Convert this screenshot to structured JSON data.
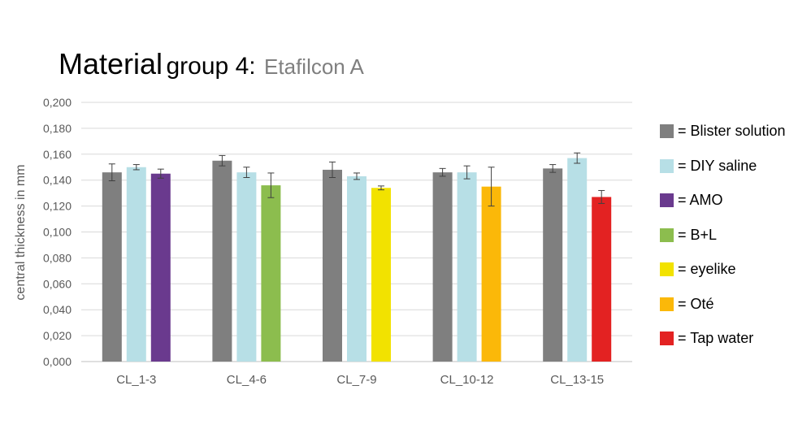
{
  "title": {
    "part1": "Material",
    "part2": "group 4:",
    "subtitle": "Etafilcon A"
  },
  "chart_data": {
    "type": "bar",
    "ylabel": "central thickness in mm",
    "xlabel": "",
    "ylim": [
      0,
      0.2
    ],
    "yticks": [
      "0,000",
      "0,020",
      "0,040",
      "0,060",
      "0,080",
      "0,100",
      "0,120",
      "0,140",
      "0,160",
      "0,180",
      "0,200"
    ],
    "grid": true,
    "legend_position": "right",
    "groups": [
      {
        "label": "CL_1-3",
        "bars": [
          {
            "series": "= Blister solution",
            "value": 0.146,
            "err": 0.0065,
            "color": "#7f7f7f"
          },
          {
            "series": "= DIY saline",
            "value": 0.15,
            "err": 0.002,
            "color": "#b7dfe6"
          },
          {
            "series": "= AMO",
            "value": 0.145,
            "err": 0.0035,
            "color": "#6a3a8e"
          }
        ]
      },
      {
        "label": "CL_4-6",
        "bars": [
          {
            "series": "= Blister solution",
            "value": 0.155,
            "err": 0.004,
            "color": "#7f7f7f"
          },
          {
            "series": "= DIY saline",
            "value": 0.146,
            "err": 0.004,
            "color": "#b7dfe6"
          },
          {
            "series": "= B+L",
            "value": 0.136,
            "err": 0.0095,
            "color": "#8cbd4e"
          }
        ]
      },
      {
        "label": "CL_7-9",
        "bars": [
          {
            "series": "= Blister solution",
            "value": 0.148,
            "err": 0.006,
            "color": "#7f7f7f"
          },
          {
            "series": "= DIY saline",
            "value": 0.143,
            "err": 0.0025,
            "color": "#b7dfe6"
          },
          {
            "series": "= eyelike",
            "value": 0.134,
            "err": 0.0015,
            "color": "#f2e200"
          }
        ]
      },
      {
        "label": "CL_10-12",
        "bars": [
          {
            "series": "= Blister solution",
            "value": 0.146,
            "err": 0.003,
            "color": "#7f7f7f"
          },
          {
            "series": "= DIY saline",
            "value": 0.146,
            "err": 0.005,
            "color": "#b7dfe6"
          },
          {
            "series": "= Oté",
            "value": 0.135,
            "err": 0.015,
            "color": "#fbb809"
          }
        ]
      },
      {
        "label": "CL_13-15",
        "bars": [
          {
            "series": "= Blister solution",
            "value": 0.149,
            "err": 0.003,
            "color": "#7f7f7f"
          },
          {
            "series": "= DIY saline",
            "value": 0.157,
            "err": 0.004,
            "color": "#b7dfe6"
          },
          {
            "series": "= Tap  water",
            "value": 0.127,
            "err": 0.005,
            "color": "#e32222"
          }
        ]
      }
    ],
    "legend": [
      {
        "label": "= Blister solution",
        "color": "#7f7f7f"
      },
      {
        "label": "= DIY saline",
        "color": "#b7dfe6"
      },
      {
        "label": "= AMO",
        "color": "#6a3a8e"
      },
      {
        "label": "= B+L",
        "color": "#8cbd4e"
      },
      {
        "label": "= eyelike",
        "color": "#f2e200"
      },
      {
        "label": "= Oté",
        "color": "#fbb809"
      },
      {
        "label": "= Tap  water",
        "color": "#e32222"
      }
    ]
  }
}
